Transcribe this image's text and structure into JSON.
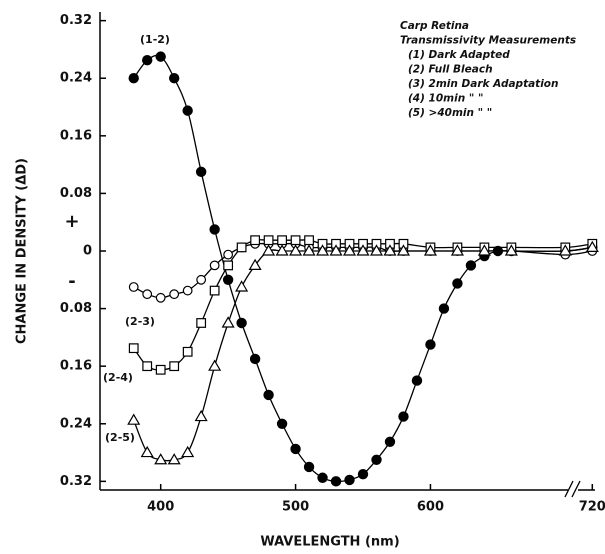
{
  "chart_data": {
    "type": "line",
    "xlabel": "WAVELENGTH (nm)",
    "ylabel": "CHANGE IN DENSITY (ΔD)",
    "xlim": [
      355,
      722
    ],
    "ylim": [
      -0.332,
      0.332
    ],
    "xticks": [
      400,
      500,
      600,
      720
    ],
    "yticks": [
      0.32,
      0.24,
      0.16,
      0.08,
      0,
      {
        "value": -0.08,
        "label": "0.08"
      },
      {
        "value": -0.16,
        "label": "0.16"
      },
      {
        "value": -0.24,
        "label": "0.24"
      },
      {
        "value": -0.32,
        "label": "0.32"
      }
    ],
    "annotations": [
      "(1-2)",
      "(2-3)",
      "(2-4)",
      "(2-5)",
      "+",
      "-"
    ],
    "legend_text": [
      "Carp Retina",
      "Transmissivity Measurements",
      "(1)  Dark Adapted",
      "(2)  Full Bleach",
      "(3)    2min Dark Adaptation",
      "(4)  10min   \"           \"",
      "(5) >40min   \"           \""
    ],
    "series": [
      {
        "marker": "filled-circle",
        "color": "#000000",
        "x": [
          380,
          390,
          400,
          410,
          420,
          430,
          440,
          450,
          460,
          470,
          480,
          490,
          500,
          510,
          520,
          530,
          540,
          550,
          560,
          570,
          580,
          590,
          600,
          610,
          620,
          630,
          640,
          650,
          660,
          700,
          720
        ],
        "values": [
          0.24,
          0.265,
          0.27,
          0.24,
          0.195,
          0.11,
          0.03,
          -0.04,
          -0.1,
          -0.15,
          -0.2,
          -0.24,
          -0.275,
          -0.3,
          -0.315,
          -0.32,
          -0.318,
          -0.31,
          -0.29,
          -0.265,
          -0.23,
          -0.18,
          -0.13,
          -0.08,
          -0.045,
          -0.02,
          -0.007,
          0,
          0,
          0,
          0.005
        ]
      },
      {
        "marker": "open-circle",
        "color": "#000000",
        "x": [
          380,
          390,
          400,
          410,
          420,
          430,
          440,
          450,
          460,
          470,
          480,
          490,
          500,
          510,
          520,
          530,
          540,
          550,
          560,
          570,
          580,
          600,
          620,
          640,
          660,
          700,
          720
        ],
        "values": [
          -0.05,
          -0.06,
          -0.065,
          -0.06,
          -0.055,
          -0.04,
          -0.02,
          -0.005,
          0.005,
          0.01,
          0.01,
          0.01,
          0.01,
          0.005,
          0.005,
          0.005,
          0.005,
          0.005,
          0.005,
          0,
          0,
          0,
          0,
          0,
          0,
          -0.005,
          0
        ]
      },
      {
        "marker": "square",
        "color": "#000000",
        "x": [
          380,
          390,
          400,
          410,
          420,
          430,
          440,
          450,
          460,
          470,
          480,
          490,
          500,
          510,
          520,
          530,
          540,
          550,
          560,
          570,
          580,
          600,
          620,
          640,
          660,
          700,
          720
        ],
        "values": [
          -0.135,
          -0.16,
          -0.165,
          -0.16,
          -0.14,
          -0.1,
          -0.055,
          -0.02,
          0.005,
          0.015,
          0.015,
          0.015,
          0.015,
          0.015,
          0.01,
          0.01,
          0.01,
          0.01,
          0.01,
          0.01,
          0.01,
          0.005,
          0.005,
          0.005,
          0.005,
          0.005,
          0.01
        ]
      },
      {
        "marker": "triangle",
        "color": "#000000",
        "x": [
          380,
          390,
          400,
          410,
          420,
          430,
          440,
          450,
          460,
          470,
          480,
          490,
          500,
          510,
          520,
          530,
          540,
          550,
          560,
          570,
          580,
          600,
          620,
          640,
          660,
          700,
          720
        ],
        "values": [
          -0.235,
          -0.28,
          -0.29,
          -0.29,
          -0.28,
          -0.23,
          -0.16,
          -0.1,
          -0.05,
          -0.02,
          0,
          0,
          0,
          0,
          0,
          0,
          0,
          0,
          0,
          0,
          0,
          0,
          0,
          0,
          0,
          0,
          0.005
        ]
      }
    ]
  }
}
